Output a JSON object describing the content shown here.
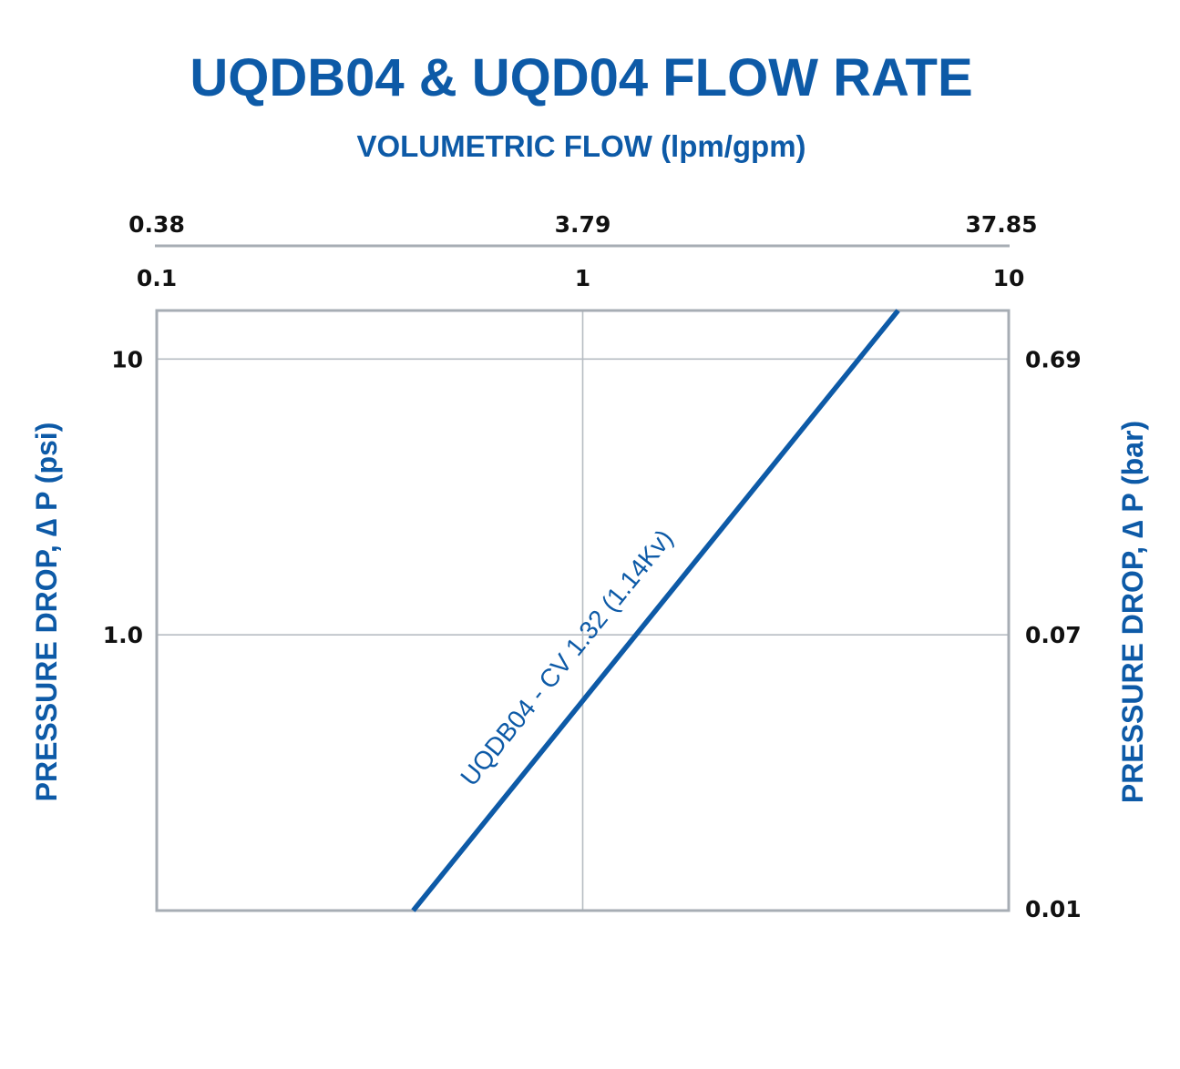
{
  "chart_data": {
    "type": "line",
    "title": "UQDB04 & UQD04 FLOW RATE",
    "subtitle": "VOLUMETRIC FLOW (lpm/gpm)",
    "ylabel_left": "PRESSURE DROP, ∆ P (psi)",
    "ylabel_right": "PRESSURE DROP, ∆ P (bar)",
    "x_scale": "log",
    "y_scale": "log",
    "xlim": [
      0.1,
      10
    ],
    "ylim": [
      0.1,
      15
    ],
    "x_ticks_gpm": [
      {
        "value": 0.1,
        "label": "0.1"
      },
      {
        "value": 1,
        "label": "1"
      },
      {
        "value": 10,
        "label": "10"
      }
    ],
    "x_ticks_lpm": [
      {
        "value": 0.1,
        "label": "0.38"
      },
      {
        "value": 1,
        "label": "3.79"
      },
      {
        "value": 10,
        "label": "37.85"
      }
    ],
    "y_ticks_psi": [
      {
        "value": 10,
        "label": "10"
      },
      {
        "value": 1,
        "label": "1.0"
      }
    ],
    "y_ticks_bar": [
      {
        "value": 10,
        "label": "0.69"
      },
      {
        "value": 1,
        "label": "0.07"
      },
      {
        "value": 0.1,
        "label": "0.01"
      }
    ],
    "grid": true,
    "series": [
      {
        "name": "UQDB04 - CV 1.32 (1.14Kv)",
        "points": [
          {
            "x": 0.4,
            "y": 0.1
          },
          {
            "x": 5.5,
            "y": 15
          }
        ]
      }
    ],
    "colors": {
      "accent": "#0d5aa7",
      "axis": "#a7adb4",
      "grid": "#b6bcc2",
      "text": "#111111"
    }
  }
}
